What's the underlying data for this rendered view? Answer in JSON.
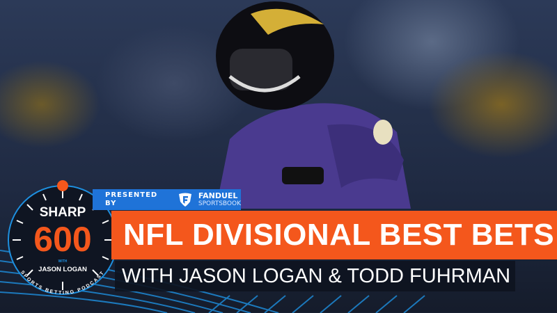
{
  "logo": {
    "line1": "SHARP",
    "line2": "600",
    "with": "WITH",
    "host": "JASON LOGAN",
    "ring_text": "SPORTS BETTING PODCAST"
  },
  "sponsor": {
    "presented_by": "PRESENTED BY",
    "brand_line1": "FANDUEL",
    "brand_line2": "SPORTSBOOK"
  },
  "headline": "NFL DIVISIONAL BEST BETS",
  "subheadline": "WITH JASON LOGAN & TODD FUHRMAN",
  "colors": {
    "orange": "#f4571c",
    "blue": "#1f73d8",
    "dark": "#0e1420",
    "ring_blue": "#1e90e0"
  }
}
